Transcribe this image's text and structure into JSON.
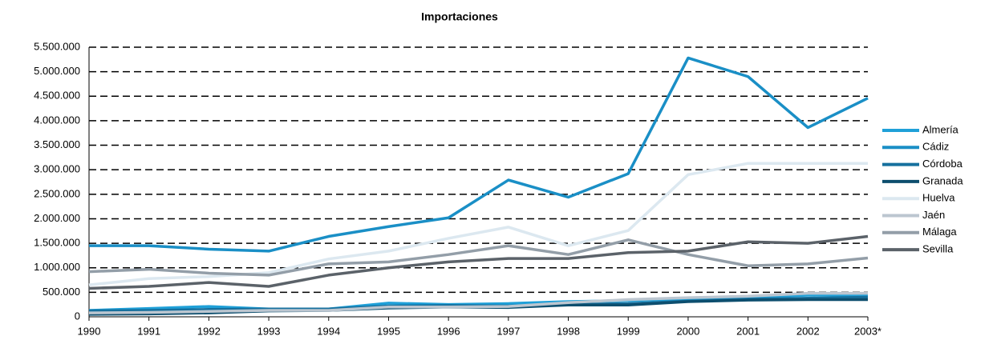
{
  "chart_data": {
    "type": "line",
    "title": "Importaciones",
    "categories": [
      "1990",
      "1991",
      "1992",
      "1993",
      "1994",
      "1995",
      "1996",
      "1997",
      "1998",
      "1999",
      "2000",
      "2001",
      "2002",
      "2003*"
    ],
    "series": [
      {
        "name": "Almería",
        "color": "#1fa0d8",
        "values": [
          130000,
          170000,
          210000,
          160000,
          160000,
          280000,
          250000,
          270000,
          310000,
          330000,
          370000,
          400000,
          440000,
          440000
        ]
      },
      {
        "name": "Cádiz",
        "color": "#1a8fc6",
        "values": [
          1450000,
          1450000,
          1380000,
          1340000,
          1640000,
          1840000,
          2020000,
          2790000,
          2440000,
          2920000,
          5280000,
          4900000,
          3860000,
          4460000
        ]
      },
      {
        "name": "Córdoba",
        "color": "#16709e",
        "values": [
          120000,
          130000,
          150000,
          160000,
          160000,
          220000,
          230000,
          220000,
          250000,
          270000,
          320000,
          360000,
          380000,
          400000
        ]
      },
      {
        "name": "Granada",
        "color": "#0d4e6e",
        "values": [
          50000,
          60000,
          80000,
          120000,
          130000,
          180000,
          200000,
          190000,
          240000,
          240000,
          310000,
          340000,
          350000,
          350000
        ]
      },
      {
        "name": "Huelva",
        "color": "#dce8f0",
        "values": [
          650000,
          780000,
          820000,
          900000,
          1180000,
          1340000,
          1600000,
          1830000,
          1450000,
          1760000,
          2900000,
          3130000,
          3130000,
          3130000
        ]
      },
      {
        "name": "Jaén",
        "color": "#bcc6d0",
        "values": [
          80000,
          90000,
          110000,
          130000,
          130000,
          200000,
          200000,
          210000,
          290000,
          350000,
          390000,
          420000,
          480000,
          480000
        ]
      },
      {
        "name": "Málaga",
        "color": "#939ea8",
        "values": [
          920000,
          970000,
          890000,
          850000,
          1080000,
          1120000,
          1270000,
          1450000,
          1270000,
          1570000,
          1270000,
          1040000,
          1080000,
          1200000
        ]
      },
      {
        "name": "Sevilla",
        "color": "#5b6269",
        "values": [
          580000,
          620000,
          700000,
          620000,
          850000,
          1000000,
          1120000,
          1190000,
          1190000,
          1310000,
          1340000,
          1530000,
          1500000,
          1640000
        ]
      }
    ],
    "ylim": [
      0,
      5500000
    ],
    "yticks": [
      0,
      {
        "value": 500000,
        "label": "500.000"
      },
      {
        "value": 1000000,
        "label": "1.000.000"
      },
      {
        "value": 1500000,
        "label": "1.500.000"
      },
      {
        "value": 2000000,
        "label": "2.000.000"
      },
      {
        "value": 2500000,
        "label": "2.500.000"
      },
      {
        "value": 3000000,
        "label": "3.000.000"
      },
      {
        "value": 3500000,
        "label": "3.500.000"
      },
      {
        "value": 4000000,
        "label": "4.000.000"
      },
      {
        "value": 4500000,
        "label": "4.500.000"
      },
      {
        "value": 5000000,
        "label": "5.000.000"
      },
      {
        "value": 5500000,
        "label": "5.500.000"
      }
    ],
    "grid": true
  }
}
